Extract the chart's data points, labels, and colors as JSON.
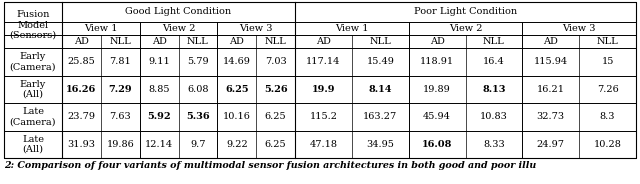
{
  "caption": "2: Comparison of four variants of multimodal sensor fusion architectures in both good and poor illu",
  "rows": [
    {
      "label": "Early\n(Camera)",
      "values": [
        "25.85",
        "7.81",
        "9.11",
        "5.79",
        "14.69",
        "7.03",
        "117.14",
        "15.49",
        "118.91",
        "16.4",
        "115.94",
        "15"
      ],
      "bold": [
        false,
        false,
        false,
        false,
        false,
        false,
        false,
        false,
        false,
        false,
        false,
        false
      ]
    },
    {
      "label": "Early\n(All)",
      "values": [
        "16.26",
        "7.29",
        "8.85",
        "6.08",
        "6.25",
        "5.26",
        "19.9",
        "8.14",
        "19.89",
        "8.13",
        "16.21",
        "7.26"
      ],
      "bold": [
        true,
        true,
        false,
        false,
        true,
        true,
        true,
        true,
        false,
        true,
        false,
        false
      ]
    },
    {
      "label": "Late\n(Camera)",
      "values": [
        "23.79",
        "7.63",
        "5.92",
        "5.36",
        "10.16",
        "6.25",
        "115.2",
        "163.27",
        "45.94",
        "10.83",
        "32.73",
        "8.3"
      ],
      "bold": [
        false,
        false,
        true,
        true,
        false,
        false,
        false,
        false,
        false,
        false,
        false,
        false
      ]
    },
    {
      "label": "Late\n(All)",
      "values": [
        "31.93",
        "19.86",
        "12.14",
        "9.7",
        "9.22",
        "6.25",
        "47.18",
        "34.95",
        "16.08",
        "8.33",
        "24.97",
        "10.28"
      ],
      "bold": [
        false,
        false,
        false,
        false,
        false,
        false,
        false,
        false,
        true,
        false,
        false,
        false
      ]
    }
  ],
  "background_color": "#ffffff",
  "font_size": 7.0,
  "caption_font_size": 6.8
}
